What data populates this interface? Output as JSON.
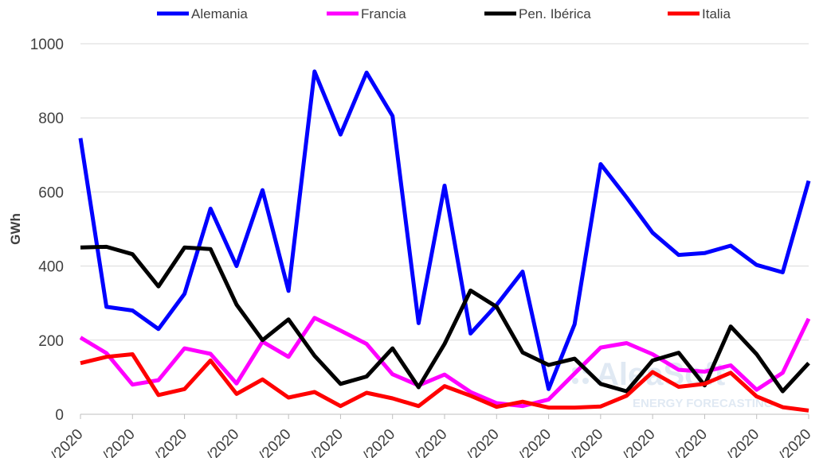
{
  "chart_data": {
    "type": "line",
    "ylabel": "GWh",
    "ylim": [
      0,
      1000
    ],
    "yticks": [
      0,
      200,
      400,
      600,
      800,
      1000
    ],
    "xtick_labels": [
      "/2020",
      "/2020",
      "/2020",
      "/2020",
      "/2020",
      "/2020",
      "/2020",
      "/2020",
      "/2020",
      "/2020",
      "/2020",
      "/2020",
      "/2020",
      "/2020",
      "/2020"
    ],
    "grid": true,
    "legend_position": "top",
    "series": [
      {
        "name": "Alemania",
        "color": "#0000ff",
        "values": [
          745,
          290,
          280,
          230,
          325,
          555,
          400,
          605,
          333,
          925,
          755,
          922,
          805,
          246,
          617,
          218,
          295,
          385,
          68,
          243,
          675,
          585,
          490,
          430,
          435,
          455,
          403,
          383,
          630
        ]
      },
      {
        "name": "Francia",
        "color": "#ff00ff",
        "values": [
          207,
          165,
          80,
          92,
          178,
          163,
          83,
          196,
          155,
          260,
          226,
          190,
          108,
          78,
          107,
          60,
          30,
          22,
          40,
          110,
          180,
          192,
          162,
          120,
          115,
          132,
          66,
          112,
          258
        ]
      },
      {
        "name": "Pen. Ibérica",
        "color": "#000000",
        "values": [
          450,
          452,
          432,
          345,
          450,
          446,
          296,
          200,
          256,
          158,
          82,
          102,
          178,
          73,
          190,
          334,
          290,
          167,
          133,
          150,
          82,
          62,
          145,
          166,
          78,
          237,
          162,
          62,
          138
        ]
      },
      {
        "name": "Italia",
        "color": "#ff0000",
        "values": [
          138,
          155,
          162,
          52,
          68,
          145,
          55,
          94,
          45,
          60,
          22,
          58,
          43,
          22,
          76,
          50,
          20,
          34,
          18,
          18,
          21,
          50,
          114,
          74,
          82,
          112,
          48,
          19,
          10
        ]
      }
    ]
  },
  "watermark": {
    "brand": "AleaSoft",
    "tagline": "ENERGY FORECASTING"
  }
}
